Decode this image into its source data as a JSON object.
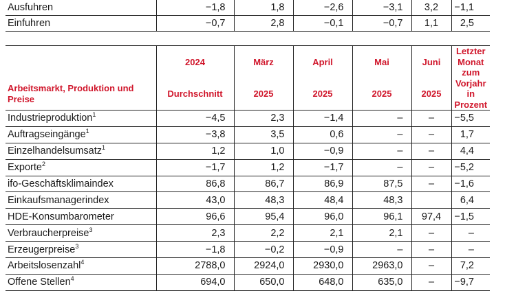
{
  "top_rows": [
    {
      "label": "Ausfuhren",
      "values": [
        "−1,8",
        "1,8",
        "−2,6",
        "−3,1",
        "3,2",
        "−1,1"
      ]
    },
    {
      "label": "Einfuhren",
      "values": [
        "−0,7",
        "2,8",
        "−0,1",
        "−0,7",
        "1,1",
        "2,5"
      ]
    }
  ],
  "header": {
    "row1": [
      "2024",
      "März",
      "April",
      "Mai",
      "Juni"
    ],
    "section_label": "Arbeitsmarkt, Produktion und Preise",
    "row2": [
      "Durchschnitt",
      "2025",
      "2025",
      "2025",
      "2025"
    ],
    "last_col": "Letzter Monat zum Vorjahr in Prozent"
  },
  "rows": [
    {
      "label": "Industrieproduktion",
      "sup": "1",
      "values": [
        "−4,5",
        "2,3",
        "−1,4",
        "–",
        "–",
        "−5,5"
      ]
    },
    {
      "label": "Auftragseingänge",
      "sup": "1",
      "values": [
        "−3,8",
        "3,5",
        "0,6",
        "–",
        "–",
        "1,7"
      ]
    },
    {
      "label": "Einzelhandelsumsatz",
      "sup": "1",
      "values": [
        "1,2",
        "1,0",
        "−0,9",
        "–",
        "–",
        "4,4"
      ]
    },
    {
      "label": "Exporte",
      "sup": "2",
      "values": [
        "−1,7",
        "1,2",
        "−1,7",
        "–",
        "–",
        "−5,2"
      ]
    },
    {
      "label": "ifo-Geschäftsklimaindex",
      "sup": "",
      "values": [
        "86,8",
        "86,7",
        "86,9",
        "87,5",
        "–",
        "−1,6"
      ]
    },
    {
      "label": "Einkaufsmanagerindex",
      "sup": "",
      "values": [
        "43,0",
        "48,3",
        "48,4",
        "48,3",
        "",
        "6,4"
      ]
    },
    {
      "label": "HDE-Konsumbarometer",
      "sup": "",
      "values": [
        "96,6",
        "95,4",
        "96,0",
        "96,1",
        "97,4",
        "−1,5"
      ]
    },
    {
      "label": "Verbraucherpreise",
      "sup": "3",
      "values": [
        "2,3",
        "2,2",
        "2,1",
        "2,1",
        "–",
        "–"
      ]
    },
    {
      "label": "Erzeugerpreise",
      "sup": "3",
      "values": [
        "−1,8",
        "−0,2",
        "−0,9",
        "–",
        "–",
        "–"
      ]
    },
    {
      "label": "Arbeitslosenzahl",
      "sup": "4",
      "values": [
        "2788,0",
        "2924,0",
        "2930,0",
        "2963,0",
        "–",
        "7,2"
      ]
    },
    {
      "label": "Offene Stellen",
      "sup": "4",
      "values": [
        "694,0",
        "650,0",
        "648,0",
        "635,0",
        "–",
        "−9,7"
      ]
    }
  ]
}
